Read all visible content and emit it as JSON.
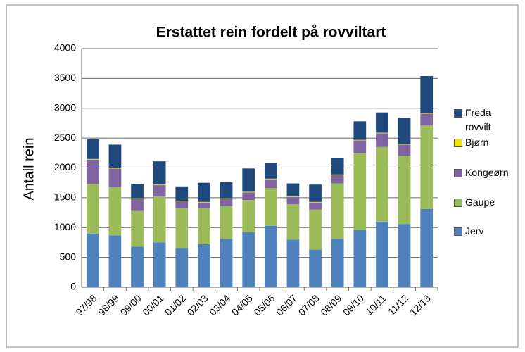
{
  "chart_data": {
    "type": "stacked-bar",
    "title": "Erstattet rein fordelt på rovviltart",
    "y_label": "Antall rein",
    "categories": [
      "97/98",
      "98/99",
      "99/00",
      "00/01",
      "01/02",
      "02/03",
      "03/04",
      "04/05",
      "05/06",
      "06/07",
      "07/08",
      "08/09",
      "09/10",
      "10/11",
      "11/12",
      "12/13"
    ],
    "series": [
      {
        "name": "Jerv",
        "color": "#4f81bd",
        "values": [
          900,
          870,
          680,
          750,
          660,
          720,
          810,
          920,
          1030,
          800,
          630,
          810,
          960,
          1100,
          1060,
          1310
        ]
      },
      {
        "name": "Gaupe",
        "color": "#9bbb59",
        "values": [
          830,
          810,
          600,
          770,
          660,
          600,
          550,
          540,
          630,
          590,
          670,
          930,
          1290,
          1250,
          1140,
          1400
        ]
      },
      {
        "name": "Kongeørn",
        "color": "#8064a2",
        "values": [
          410,
          310,
          200,
          190,
          120,
          100,
          120,
          130,
          150,
          120,
          120,
          140,
          210,
          230,
          190,
          200
        ]
      },
      {
        "name": "Bjørn",
        "color": "#f2e600",
        "values": [
          10,
          10,
          10,
          10,
          10,
          10,
          10,
          10,
          10,
          10,
          10,
          10,
          10,
          10,
          10,
          10
        ]
      },
      {
        "name": "Freda rovvilt",
        "color": "#1f497d",
        "values": [
          330,
          390,
          240,
          390,
          240,
          320,
          270,
          390,
          260,
          220,
          290,
          280,
          310,
          340,
          440,
          620
        ]
      }
    ],
    "ylim": [
      0,
      4000
    ],
    "yticks": [
      0,
      500,
      1000,
      1500,
      2000,
      2500,
      3000,
      3500,
      4000
    ],
    "grid": true
  }
}
